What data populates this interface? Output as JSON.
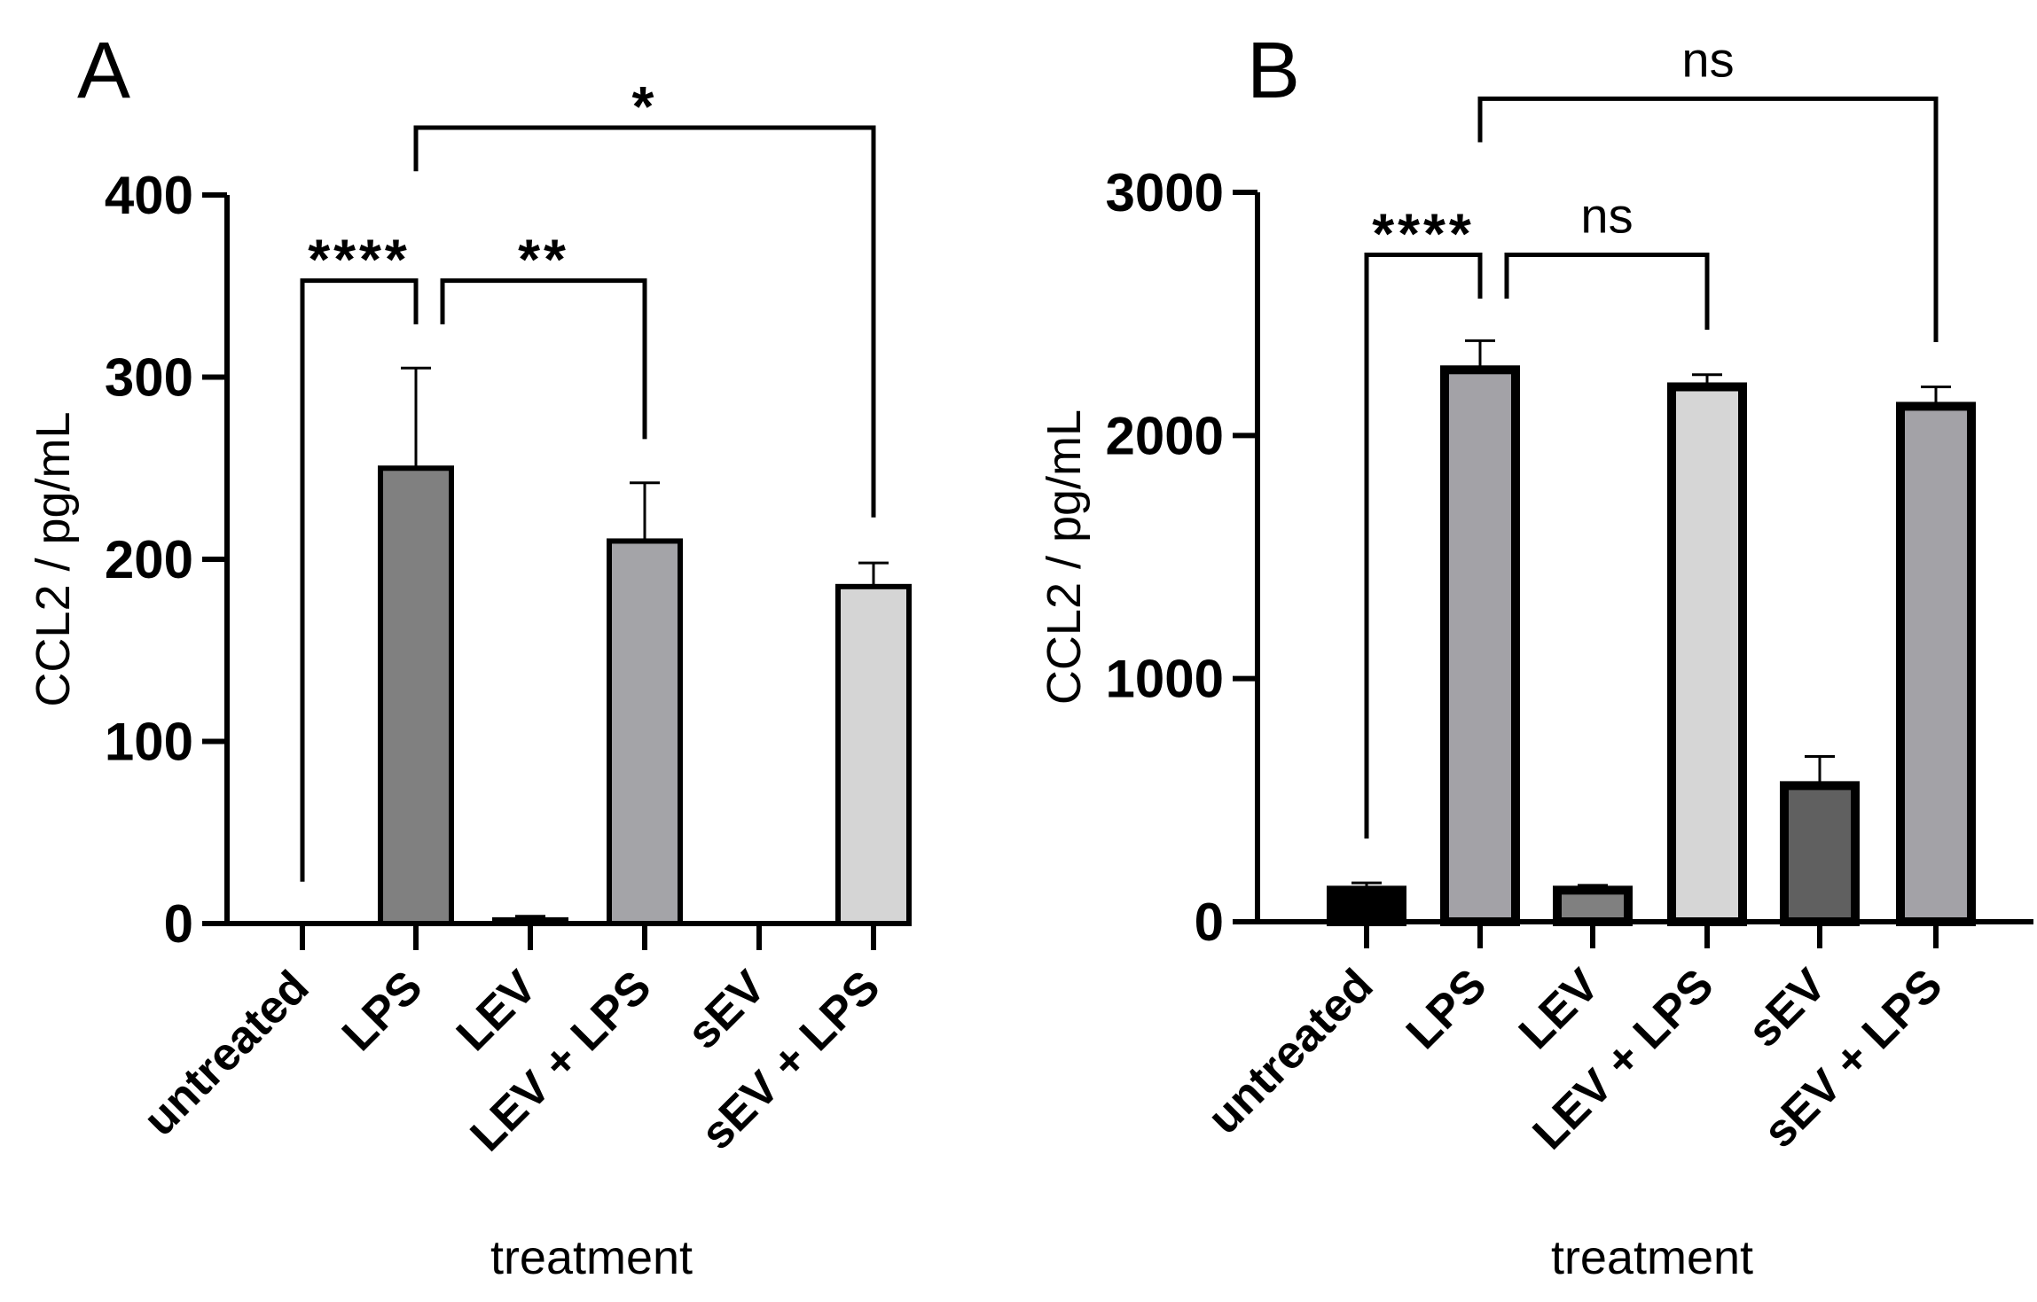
{
  "chart_data": [
    {
      "type": "bar",
      "panel_label": "A",
      "xlabel": "treatment",
      "ylabel": "CCL2 / pg/mL",
      "ylim": [
        0,
        400
      ],
      "yticks": [
        0,
        100,
        200,
        300,
        400
      ],
      "categories": [
        "untreated",
        "LPS",
        "LEV",
        "LEV + LPS",
        "sEV",
        "sEV + LPS"
      ],
      "values": [
        0,
        250,
        2,
        210,
        0,
        185
      ],
      "error_upper": [
        0,
        305,
        4,
        242,
        0,
        198
      ],
      "colors": [
        "#000000",
        "#808080",
        "#a0a0a0",
        "#a4a4a8",
        "#b0b0b0",
        "#d5d5d5"
      ],
      "comparisons": [
        {
          "from": 0,
          "to": 1,
          "label": "****",
          "top": 353,
          "from_end": 23,
          "to_end": 329
        },
        {
          "from": 1,
          "to": 3,
          "label": "**",
          "top": 353,
          "from_end": 329,
          "to_end": 266
        },
        {
          "from": 1,
          "to": 5,
          "label": "*",
          "top": 437,
          "from_end": 413,
          "to_end": 223
        }
      ]
    },
    {
      "type": "bar",
      "panel_label": "B",
      "xlabel": "treatment",
      "ylabel": "CCL2 / pg/mL",
      "ylim": [
        0,
        3000
      ],
      "yticks": [
        0,
        1000,
        2000,
        3000
      ],
      "categories": [
        "untreated",
        "LPS",
        "LEV",
        "LEV + LPS",
        "sEV",
        "sEV + LPS"
      ],
      "values": [
        130,
        2270,
        130,
        2200,
        560,
        2120
      ],
      "error_upper": [
        160,
        2390,
        150,
        2250,
        680,
        2200
      ],
      "colors": [
        "#000000",
        "#a3a2a7",
        "#808080",
        "#d6d6d6",
        "#606060",
        "#a3a2a7"
      ],
      "comparisons": [
        {
          "from": 0,
          "to": 1,
          "label": "****",
          "top": 2743,
          "from_end": 342,
          "to_end": 2563
        },
        {
          "from": 1,
          "to": 3,
          "label": "ns",
          "top": 2743,
          "from_end": 2563,
          "to_end": 2435
        },
        {
          "from": 1,
          "to": 5,
          "label": "ns",
          "top": 3385,
          "from_end": 3206,
          "to_end": 2384
        }
      ]
    }
  ]
}
